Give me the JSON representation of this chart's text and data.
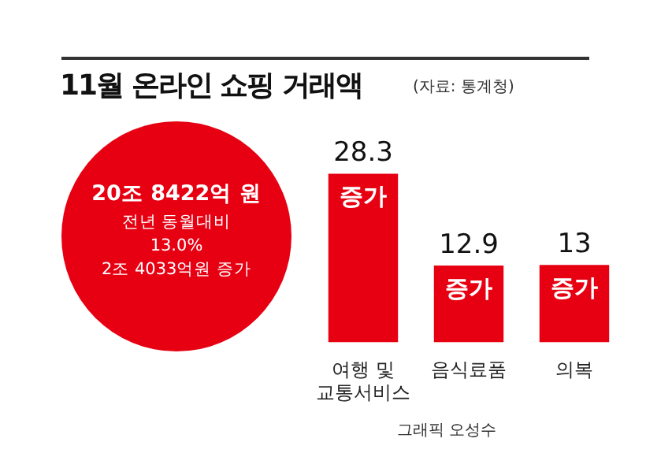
{
  "chart_data": {
    "type": "bar",
    "title": "11월 온라인 쇼핑 거래액",
    "subtitle": "(자료: 통계청)",
    "categories": [
      "여행 및\n교통서비스",
      "음식료품",
      "의복"
    ],
    "values": [
      28.3,
      12.9,
      13
    ],
    "color": "#e60012",
    "data_labels": true,
    "grid": false,
    "legend": false,
    "annotations": [
      "20조 8422억 원",
      "전년 동월대비",
      "13.0%",
      "2조 4033억원 증가",
      "증가",
      "증가",
      "증가",
      "그래픽 오성수"
    ]
  }
}
